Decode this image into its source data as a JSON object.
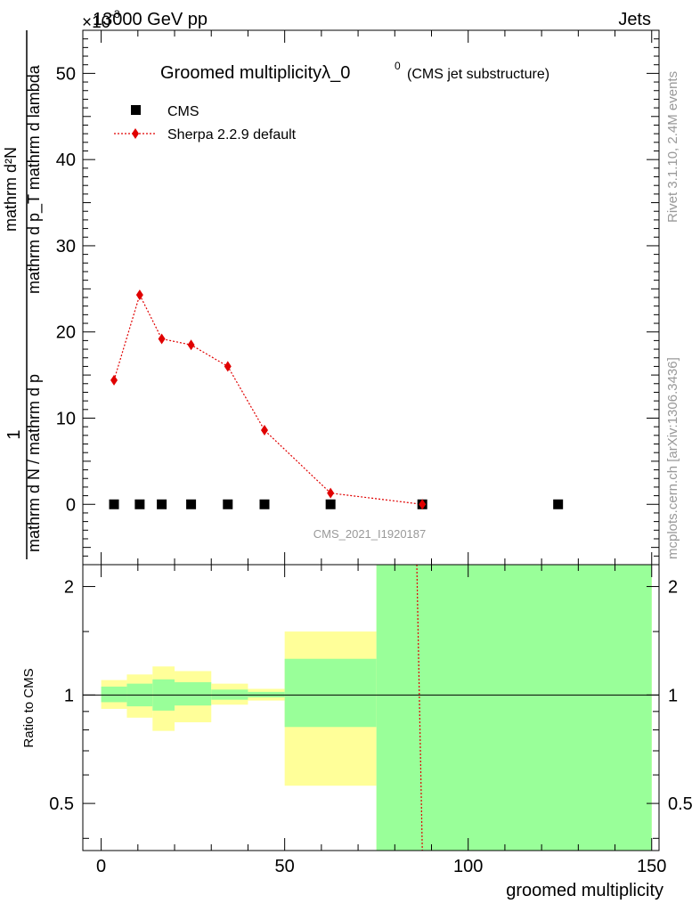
{
  "header": {
    "energy_label": "13000 GeV pp",
    "category_label": "Jets",
    "exponent_label": "×10",
    "exponent_power": "-3"
  },
  "side_text": {
    "rivet": "Rivet 3.1.10,  2.4M events",
    "mcplots": "mcplots.cern.ch [arXiv:1306.3436]"
  },
  "chart_data": [
    {
      "panel": "main",
      "type": "scatter",
      "title": "Groomed multiplicityλ_0",
      "title_superscript": "0",
      "subtitle": "(CMS jet substructure)",
      "analysis_id": "CMS_2021_I1920187",
      "ylabel_numerator": "1",
      "ylabel_denominator": "mathrm d N / mathrm d p",
      "ylabel_numerator_full": "mathrm d²N",
      "ylabel_denominator_full": "mathrm d p_T mathrm d p_T mathrm d lambda",
      "ylabel_rotated_top": "mathrm d²N",
      "ylabel_rotated_bottom": "mathrm d p_T mathrm d lambda",
      "xlim": [
        -5,
        152
      ],
      "ylim": [
        -7,
        55
      ],
      "yticks": [
        0,
        10,
        20,
        30,
        40,
        50
      ],
      "ytick_labels": [
        "0",
        "10",
        "20",
        "30",
        "40",
        "50"
      ],
      "legend_position": "top-left",
      "series": [
        {
          "name": "CMS",
          "marker": "square",
          "color": "#000000",
          "x": [
            3.5,
            10.5,
            16.5,
            24.5,
            34.5,
            44.5,
            62.5,
            87.5,
            124.5
          ],
          "y": [
            0,
            0,
            0,
            0,
            0,
            0,
            0,
            0,
            0
          ]
        },
        {
          "name": "Sherpa 2.2.9 default",
          "marker": "diamond",
          "line": "dotted",
          "color": "#e00000",
          "x": [
            3.5,
            10.5,
            16.5,
            24.5,
            34.5,
            44.5,
            62.5,
            87.5
          ],
          "y": [
            14.4,
            24.3,
            19.2,
            18.5,
            16.0,
            8.6,
            1.3,
            0.0
          ]
        }
      ]
    },
    {
      "panel": "ratio",
      "type": "area",
      "ylabel": "Ratio to CMS",
      "xlabel": "groomed multiplicity",
      "xlim": [
        -5,
        152
      ],
      "ylim": [
        0.37,
        2.3
      ],
      "yscale": "log",
      "yticks": [
        0.5,
        1,
        2
      ],
      "ytick_labels": [
        "0.5",
        "1",
        "2"
      ],
      "xticks": [
        0,
        50,
        100,
        150
      ],
      "xtick_labels": [
        "0",
        "50",
        "100",
        "150"
      ],
      "bins": [
        {
          "lo": 0,
          "hi": 7,
          "green": [
            0.955,
            1.055
          ],
          "yellow": [
            0.915,
            1.1
          ]
        },
        {
          "lo": 7,
          "hi": 14,
          "green": [
            0.93,
            1.075
          ],
          "yellow": [
            0.865,
            1.14
          ]
        },
        {
          "lo": 14,
          "hi": 20,
          "green": [
            0.905,
            1.105
          ],
          "yellow": [
            0.795,
            1.2
          ]
        },
        {
          "lo": 20,
          "hi": 30,
          "green": [
            0.935,
            1.085
          ],
          "yellow": [
            0.84,
            1.165
          ]
        },
        {
          "lo": 30,
          "hi": 40,
          "green": [
            0.97,
            1.035
          ],
          "yellow": [
            0.94,
            1.075
          ]
        },
        {
          "lo": 40,
          "hi": 50,
          "green": [
            0.985,
            1.02
          ],
          "yellow": [
            0.965,
            1.04
          ]
        },
        {
          "lo": 50,
          "hi": 75,
          "green": [
            0.815,
            1.26
          ],
          "yellow": [
            0.56,
            1.5
          ]
        },
        {
          "lo": 75,
          "hi": 150,
          "green": [
            0.3,
            3.0
          ],
          "yellow": [
            0.3,
            3.0
          ]
        }
      ],
      "band_colors": {
        "green": "#99ff99",
        "yellow": "#ffff99"
      },
      "reference_line": 1,
      "mc_line": {
        "name": "Sherpa 2.2.9 default",
        "color": "#e00000",
        "x": [
          86,
          87.5
        ],
        "y": [
          2.3,
          0.37
        ]
      }
    }
  ]
}
